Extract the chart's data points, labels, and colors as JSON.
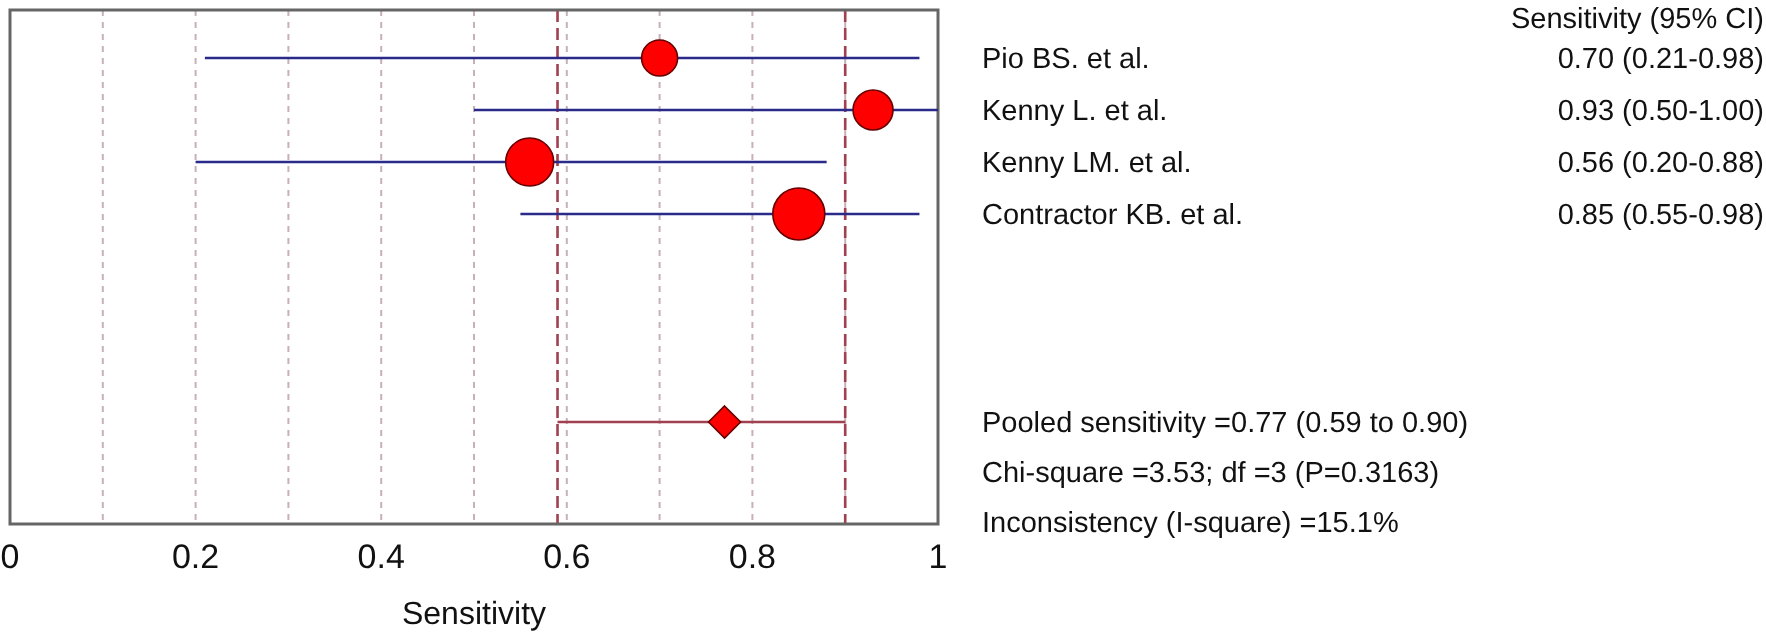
{
  "chart_data": {
    "type": "bubble",
    "orientation": "horizontal",
    "xlabel": "Sensitivity",
    "categories": [
      "Pio BS. et al.",
      "Kenny L. et al.",
      "Kenny LM. et al.",
      "Contractor KB. et al.",
      null,
      null,
      null,
      null
    ],
    "xlim": [
      0,
      1
    ],
    "xticks": [
      0,
      {
        "value": 0.1,
        "label": null
      },
      0.2,
      {
        "value": 0.3,
        "label": null
      },
      0.4,
      {
        "value": 0.5,
        "label": null
      },
      0.6,
      {
        "value": 0.7,
        "label": null
      },
      0.8,
      {
        "value": 0.9,
        "label": null
      },
      1
    ],
    "grid": "x",
    "ref_lines": [
      {
        "axis": "x",
        "value": 0.59,
        "line_style": "dashed",
        "color": "#a04050"
      },
      {
        "axis": "x",
        "value": 0.9,
        "line_style": "dashed",
        "color": "#a04050"
      }
    ],
    "annotations": [
      "Sensitivity (95% CI)",
      "Pooled sensitivity =0.77 (0.59 to 0.90)",
      "Chi-square =3.53; df =3 (P=0.3163)",
      "Inconsistency (I-square) =15.1%"
    ],
    "series": [
      {
        "color": "#ff0000",
        "values": [
          0.7,
          0.93,
          0.56,
          0.85,
          null,
          null,
          null,
          null
        ],
        "sizes": [
          0.48,
          0.59,
          0.85,
          1,
          null,
          null,
          null,
          null
        ],
        "errors": [
          [
            0.21,
            0.98
          ],
          [
            0.5,
            1.0
          ],
          [
            0.2,
            0.88
          ],
          [
            0.55,
            0.98
          ],
          null,
          null,
          null,
          null
        ],
        "value_labels": [
          "0.70 (0.21-0.98)",
          "0.93 (0.50-1.00)",
          "0.56 (0.20-0.88)",
          "0.85 (0.55-0.98)",
          null,
          null,
          null,
          null
        ]
      },
      {
        "type": "scatter",
        "marker": "diamond",
        "color": "#ff0000",
        "values": [
          null,
          null,
          null,
          null,
          null,
          null,
          null,
          0.77
        ],
        "errors": [
          null,
          null,
          null,
          null,
          null,
          null,
          null,
          [
            0.59,
            0.9
          ]
        ]
      }
    ]
  }
}
